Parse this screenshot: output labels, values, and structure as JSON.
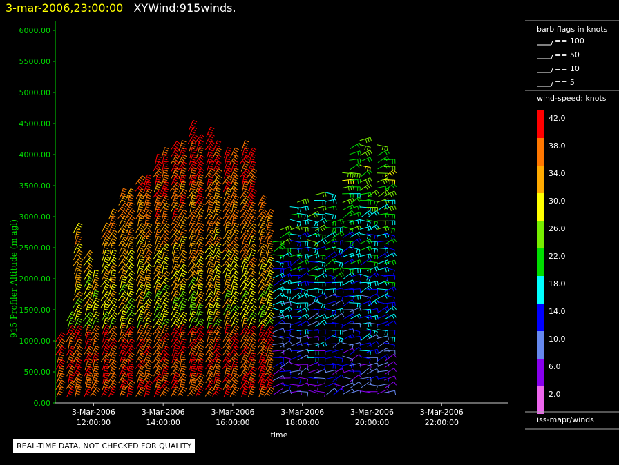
{
  "header": {
    "datetime": "3-mar-2006,23:00:00",
    "title": "XYWind:915winds."
  },
  "notice": "REAL-TIME DATA, NOT CHECKED FOR QUALITY",
  "legend": {
    "barb_title": "barb flags in knots",
    "barb_items": [
      "== 100",
      "== 50",
      "== 10",
      "== 5"
    ],
    "speed_title": "wind-speed: knots",
    "speed_bins": [
      {
        "label": "42.0",
        "color": "#ff0000"
      },
      {
        "label": "38.0",
        "color": "#ff7700"
      },
      {
        "label": "34.0",
        "color": "#ffaa00"
      },
      {
        "label": "30.0",
        "color": "#ffff00"
      },
      {
        "label": "26.0",
        "color": "#77ee00"
      },
      {
        "label": "22.0",
        "color": "#00dd00"
      },
      {
        "label": "18.0",
        "color": "#00ffff"
      },
      {
        "label": "14.0",
        "color": "#0000ff"
      },
      {
        "label": "10.0",
        "color": "#6688ee"
      },
      {
        "label": "6.0",
        "color": "#8800ee"
      },
      {
        "label": "2.0",
        "color": "#ee66ee"
      }
    ],
    "source": "iss-mapr/winds"
  },
  "chart_data": {
    "type": "scatter",
    "ylabel": "915 Profiler Altitude (m agl)",
    "xlabel": "time",
    "ylim": [
      0,
      6200
    ],
    "yticks": [
      "0.00",
      "500.00",
      "1000.00",
      "1500.00",
      "2000.00",
      "2500.00",
      "3000.00",
      "3500.00",
      "4000.00",
      "4500.00",
      "5000.00",
      "5500.00",
      "6000.00"
    ],
    "xlim_hours": [
      10.9,
      23.9
    ],
    "xticks": [
      {
        "date": "3-Mar-2006",
        "time": "12:00:00",
        "hour": 12
      },
      {
        "date": "3-Mar-2006",
        "time": "14:00:00",
        "hour": 14
      },
      {
        "date": "3-Mar-2006",
        "time": "16:00:00",
        "hour": 16
      },
      {
        "date": "3-Mar-2006",
        "time": "18:00:00",
        "hour": 18
      },
      {
        "date": "3-Mar-2006",
        "time": "20:00:00",
        "hour": 20
      },
      {
        "date": "3-Mar-2006",
        "time": "22:00:00",
        "hour": 22
      }
    ],
    "profiles": [
      {
        "hour": 11.0,
        "top": 1100
      },
      {
        "hour": 11.3,
        "top": 1400
      },
      {
        "hour": 11.5,
        "top": 2900
      },
      {
        "hour": 11.8,
        "top": 2400
      },
      {
        "hour": 12.0,
        "top": 2100
      },
      {
        "hour": 12.3,
        "top": 2900
      },
      {
        "hour": 12.5,
        "top": 3050
      },
      {
        "hour": 12.8,
        "top": 3400
      },
      {
        "hour": 13.0,
        "top": 3450
      },
      {
        "hour": 13.3,
        "top": 3600
      },
      {
        "hour": 13.5,
        "top": 3650
      },
      {
        "hour": 13.8,
        "top": 3950
      },
      {
        "hour": 14.0,
        "top": 4050
      },
      {
        "hour": 14.3,
        "top": 4150
      },
      {
        "hour": 14.5,
        "top": 4200
      },
      {
        "hour": 14.8,
        "top": 4500
      },
      {
        "hour": 15.0,
        "top": 4300
      },
      {
        "hour": 15.3,
        "top": 4400
      },
      {
        "hour": 15.5,
        "top": 4200
      },
      {
        "hour": 15.8,
        "top": 4100
      },
      {
        "hour": 16.0,
        "top": 4100
      },
      {
        "hour": 16.3,
        "top": 4150
      },
      {
        "hour": 16.5,
        "top": 4100
      },
      {
        "hour": 16.8,
        "top": 3300
      },
      {
        "hour": 17.0,
        "top": 3100
      },
      {
        "hour": 17.3,
        "top": 2700
      },
      {
        "hour": 17.5,
        "top": 2900
      },
      {
        "hour": 17.8,
        "top": 3250
      },
      {
        "hour": 18.0,
        "top": 3350
      },
      {
        "hour": 18.3,
        "top": 3100
      },
      {
        "hour": 18.5,
        "top": 3400
      },
      {
        "hour": 18.8,
        "top": 3450
      },
      {
        "hour": 19.0,
        "top": 3000
      },
      {
        "hour": 19.3,
        "top": 3800
      },
      {
        "hour": 19.5,
        "top": 4200
      },
      {
        "hour": 19.8,
        "top": 4300
      },
      {
        "hour": 20.0,
        "top": 3400
      },
      {
        "hour": 20.3,
        "top": 4150
      },
      {
        "hour": 20.5,
        "top": 4000
      }
    ]
  }
}
